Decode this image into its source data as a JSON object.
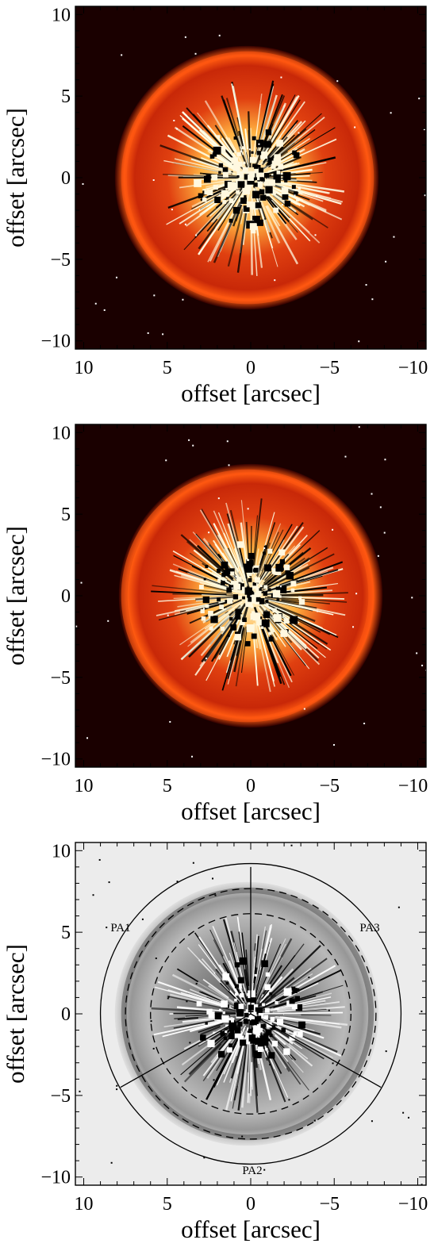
{
  "figure": {
    "panels": [
      {
        "id": "panel-1",
        "colormap": "hot",
        "xlabel": "offset [arcsec]",
        "ylabel": "offset [arcsec]"
      },
      {
        "id": "panel-2",
        "colormap": "hot",
        "xlabel": "offset [arcsec]",
        "ylabel": "offset [arcsec]"
      },
      {
        "id": "panel-3",
        "colormap": "inverted-gray",
        "xlabel": "offset [arcsec]",
        "ylabel": "offset [arcsec]",
        "sector_labels": [
          "PA1",
          "PA2",
          "PA3"
        ]
      }
    ],
    "axes": {
      "xlim": [
        10.5,
        -10.5
      ],
      "ylim": [
        -10.5,
        10.5
      ],
      "x_ticks": [
        10,
        5,
        0,
        -5,
        -10
      ],
      "y_ticks": [
        10,
        5,
        0,
        -5,
        -10
      ],
      "x_tick_labels": [
        "10",
        "5",
        "0",
        "−5",
        "−10"
      ],
      "y_tick_labels": [
        "10",
        "5",
        "0",
        "−5",
        "−10"
      ]
    },
    "overlay": {
      "outer_circle_radius": 9,
      "dashed_circle_radii": [
        6,
        7.5
      ],
      "sector_dividers_pa_deg": [
        0,
        120,
        240
      ]
    }
  }
}
